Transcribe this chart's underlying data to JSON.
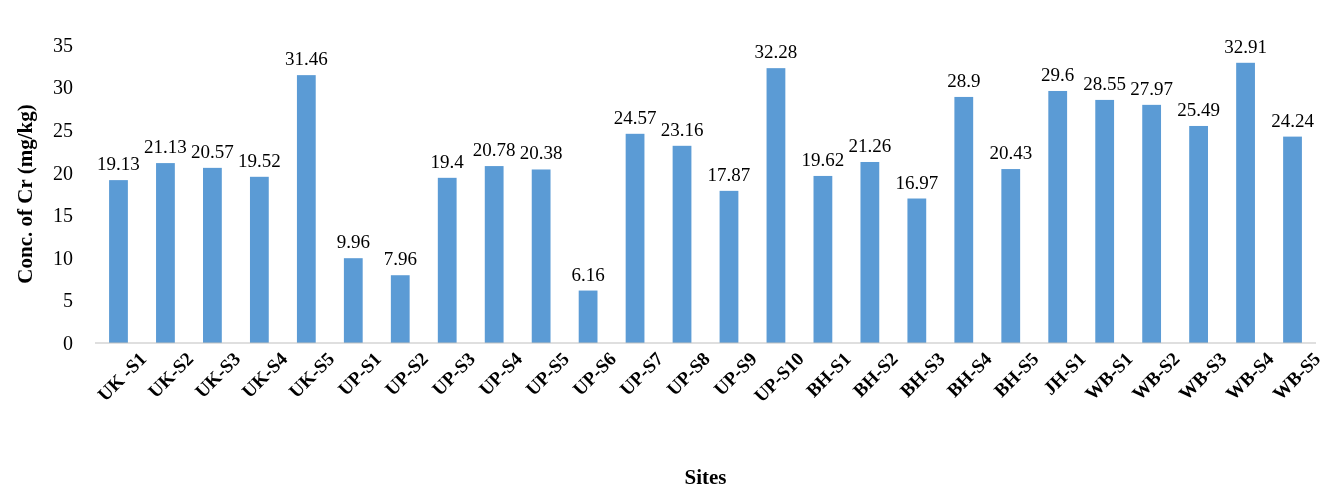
{
  "chart_data": {
    "type": "bar",
    "xlabel": "Sites",
    "ylabel": "Conc. of Cr  (mg/kg)",
    "categories": [
      "UK -S1",
      "UK-S2",
      "UK-S3",
      "UK-S4",
      "UK-S5",
      "UP-S1",
      "UP-S2",
      "UP-S3",
      "UP-S4",
      "UP-S5",
      "UP-S6",
      "UP-S7",
      "UP-S8",
      "UP-S9",
      "UP-S10",
      "BH-S1",
      "BH-S2",
      "BH-S3",
      "BH-S4",
      "BH-S5",
      "JH-S1",
      "WB-S1",
      "WB-S2",
      "WB-S3",
      "WB-S4",
      "WB-S5"
    ],
    "values": [
      19.13,
      21.13,
      20.57,
      19.52,
      31.46,
      9.96,
      7.96,
      19.4,
      20.78,
      20.38,
      6.16,
      24.57,
      23.16,
      17.87,
      32.28,
      19.62,
      21.26,
      16.97,
      28.9,
      20.43,
      29.6,
      28.55,
      27.97,
      25.49,
      32.91,
      24.24
    ],
    "color": "#5b9bd5",
    "ylim": [
      0,
      35
    ],
    "yticks": [
      0,
      5,
      10,
      15,
      20,
      25,
      30,
      35
    ],
    "grid": false,
    "data_labels": true
  }
}
